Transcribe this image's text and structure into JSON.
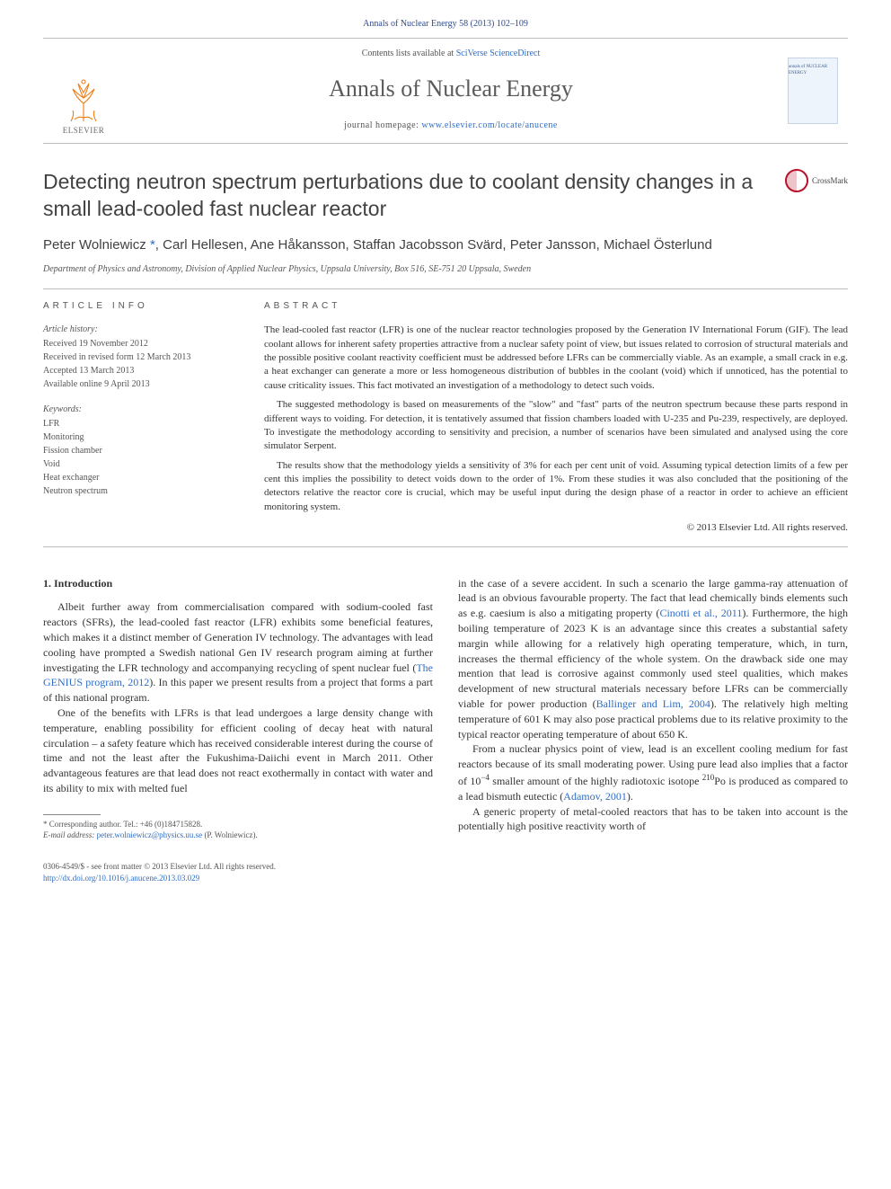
{
  "header": {
    "citation_line": "Annals of Nuclear Energy 58 (2013) 102–109",
    "contents_prefix": "Contents lists available at ",
    "contents_link": "SciVerse ScienceDirect",
    "journal_title": "Annals of Nuclear Energy",
    "homepage_prefix": "journal homepage: ",
    "homepage_url": "www.elsevier.com/locate/anucene",
    "publisher": "ELSEVIER",
    "cover_label": "annals of NUCLEAR ENERGY"
  },
  "crossmark": {
    "label": "CrossMark"
  },
  "article": {
    "title": "Detecting neutron spectrum perturbations due to coolant density changes in a small lead-cooled fast nuclear reactor",
    "authors_html": "Peter Wolniewicz *, Carl Hellesen, Ane Håkansson, Staffan Jacobsson Svärd, Peter Jansson, Michael Österlund",
    "affiliation": "Department of Physics and Astronomy, Division of Applied Nuclear Physics, Uppsala University, Box 516, SE-751 20 Uppsala, Sweden"
  },
  "info": {
    "heading": "ARTICLE INFO",
    "history_label": "Article history:",
    "history": [
      "Received 19 November 2012",
      "Received in revised form 12 March 2013",
      "Accepted 13 March 2013",
      "Available online 9 April 2013"
    ],
    "keywords_label": "Keywords:",
    "keywords": [
      "LFR",
      "Monitoring",
      "Fission chamber",
      "Void",
      "Heat exchanger",
      "Neutron spectrum"
    ]
  },
  "abstract": {
    "heading": "ABSTRACT",
    "paragraphs": [
      "The lead-cooled fast reactor (LFR) is one of the nuclear reactor technologies proposed by the Generation IV International Forum (GIF). The lead coolant allows for inherent safety properties attractive from a nuclear safety point of view, but issues related to corrosion of structural materials and the possible positive coolant reactivity coefficient must be addressed before LFRs can be commercially viable. As an example, a small crack in e.g. a heat exchanger can generate a more or less homogeneous distribution of bubbles in the coolant (void) which if unnoticed, has the potential to cause criticality issues. This fact motivated an investigation of a methodology to detect such voids.",
      "The suggested methodology is based on measurements of the \"slow\" and \"fast\" parts of the neutron spectrum because these parts respond in different ways to voiding. For detection, it is tentatively assumed that fission chambers loaded with U-235 and Pu-239, respectively, are deployed. To investigate the methodology according to sensitivity and precision, a number of scenarios have been simulated and analysed using the core simulator Serpent.",
      "The results show that the methodology yields a sensitivity of 3% for each per cent unit of void. Assuming typical detection limits of a few per cent this implies the possibility to detect voids down to the order of 1%. From these studies it was also concluded that the positioning of the detectors relative the reactor core is crucial, which may be useful input during the design phase of a reactor in order to achieve an efficient monitoring system."
    ],
    "copyright": "© 2013 Elsevier Ltd. All rights reserved."
  },
  "body": {
    "section_heading": "1. Introduction",
    "left_paragraphs": [
      "Albeit further away from commercialisation compared with sodium-cooled fast reactors (SFRs), the lead-cooled fast reactor (LFR) exhibits some beneficial features, which makes it a distinct member of Generation IV technology. The advantages with lead cooling have prompted a Swedish national Gen IV research program aiming at further investigating the LFR technology and accompanying recycling of spent nuclear fuel (<a>The GENIUS program, 2012</a>). In this paper we present results from a project that forms a part of this national program.",
      "One of the benefits with LFRs is that lead undergoes a large density change with temperature, enabling possibility for efficient cooling of decay heat with natural circulation – a safety feature which has received considerable interest during the course of time and not the least after the Fukushima-Daiichi event in March 2011. Other advantageous features are that lead does not react exothermally in contact with water and its ability to mix with melted fuel"
    ],
    "right_paragraphs": [
      "in the case of a severe accident. In such a scenario the large gamma-ray attenuation of lead is an obvious favourable property. The fact that lead chemically binds elements such as e.g. caesium is also a mitigating property (<a>Cinotti et al., 2011</a>). Furthermore, the high boiling temperature of 2023 K is an advantage since this creates a substantial safety margin while allowing for a relatively high operating temperature, which, in turn, increases the thermal efficiency of the whole system. On the drawback side one may mention that lead is corrosive against commonly used steel qualities, which makes development of new structural materials necessary before LFRs can be commercially viable for power production (<a>Ballinger and Lim, 2004</a>). The relatively high melting temperature of 601 K may also pose practical problems due to its relative proximity to the typical reactor operating temperature of about 650 K.",
      "From a nuclear physics point of view, lead is an excellent cooling medium for fast reactors because of its small moderating power. Using pure lead also implies that a factor of 10<sup>−4</sup> smaller amount of the highly radiotoxic isotope <sup>210</sup>Po is produced as compared to a lead bismuth eutectic (<a>Adamov, 2001</a>).",
      "A generic property of metal-cooled reactors that has to be taken into account is the potentially high positive reactivity worth of"
    ]
  },
  "footnote": {
    "corresponding": "* Corresponding author. Tel.: +46 (0)184715828.",
    "email_label": "E-mail address: ",
    "email": "peter.wolniewicz@physics.uu.se",
    "email_suffix": " (P. Wolniewicz)."
  },
  "footer": {
    "line1": "0306-4549/$ - see front matter © 2013 Elsevier Ltd. All rights reserved.",
    "doi": "http://dx.doi.org/10.1016/j.anucene.2013.03.029"
  },
  "colors": {
    "link": "#2e6dc4",
    "elsevier_orange": "#ed7d15",
    "text": "#333333",
    "muted": "#555555",
    "rule": "#bcbcbc"
  },
  "typography": {
    "body_fontsize_pt": 9,
    "title_fontsize_pt": 17,
    "journal_title_fontsize_pt": 20,
    "authors_fontsize_pt": 11
  }
}
